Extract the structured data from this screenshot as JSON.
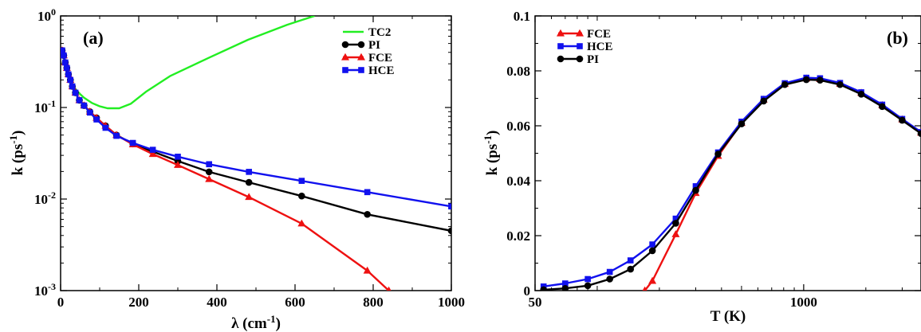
{
  "chart_data": [
    {
      "type": "line",
      "panel_label": "(a)",
      "xlabel": "λ (cm",
      "xlabel_sup": "-1",
      "xlabel_close": ")",
      "ylabel": "k (ps",
      "ylabel_sup": "-1",
      "ylabel_close": ")",
      "xscale": "linear",
      "yscale": "log",
      "xlim": [
        0,
        1000
      ],
      "ylim": [
        0.001,
        1
      ],
      "xticks": [
        {
          "value": 0,
          "label": "0"
        },
        {
          "value": 200,
          "label": "200"
        },
        {
          "value": 400,
          "label": "400"
        },
        {
          "value": 600,
          "label": "600"
        },
        {
          "value": 800,
          "label": "800"
        },
        {
          "value": 1000,
          "label": "1000"
        }
      ],
      "yticks": [
        {
          "value": 1,
          "base": "10",
          "exp": "0"
        },
        {
          "value": 0.1,
          "base": "10",
          "exp": "-1"
        },
        {
          "value": 0.01,
          "base": "10",
          "exp": "-2"
        },
        {
          "value": 0.001,
          "base": "10",
          "exp": "-3"
        }
      ],
      "legend_position": "top-right",
      "series": [
        {
          "name": "TC2",
          "color": "#22ee22",
          "marker": "none",
          "x": [
            4,
            10,
            20,
            30,
            40,
            50,
            60,
            80,
            100,
            120,
            150,
            180,
            220,
            280,
            380,
            480,
            580,
            650
          ],
          "y": [
            0.42,
            0.32,
            0.23,
            0.18,
            0.155,
            0.14,
            0.128,
            0.112,
            0.103,
            0.098,
            0.098,
            0.11,
            0.15,
            0.22,
            0.35,
            0.55,
            0.8,
            1.0
          ]
        },
        {
          "name": "PI",
          "color": "#000000",
          "marker": "circle",
          "x": [
            4,
            8,
            12,
            16,
            20,
            25,
            30,
            38,
            48,
            60,
            75,
            92,
            115,
            143,
            185,
            236,
            300,
            380,
            482,
            617,
            785,
            1000
          ],
          "y": [
            0.42,
            0.37,
            0.31,
            0.27,
            0.23,
            0.2,
            0.17,
            0.145,
            0.12,
            0.105,
            0.09,
            0.077,
            0.063,
            0.05,
            0.04,
            0.033,
            0.026,
            0.0198,
            0.0152,
            0.0108,
            0.0068,
            0.0045
          ]
        },
        {
          "name": "FCE",
          "color": "#ee1111",
          "marker": "triangle",
          "x": [
            4,
            8,
            12,
            16,
            20,
            25,
            30,
            38,
            48,
            60,
            75,
            92,
            115,
            143,
            185,
            236,
            300,
            380,
            482,
            617,
            785,
            840
          ],
          "y": [
            0.42,
            0.37,
            0.31,
            0.27,
            0.23,
            0.2,
            0.17,
            0.145,
            0.12,
            0.105,
            0.09,
            0.077,
            0.063,
            0.05,
            0.0395,
            0.031,
            0.0235,
            0.0165,
            0.0105,
            0.0054,
            0.00165,
            0.001
          ]
        },
        {
          "name": "HCE",
          "color": "#1111ee",
          "marker": "square",
          "x": [
            4,
            8,
            12,
            16,
            20,
            25,
            30,
            38,
            48,
            60,
            75,
            92,
            115,
            143,
            185,
            236,
            300,
            380,
            482,
            617,
            785,
            1000
          ],
          "y": [
            0.42,
            0.37,
            0.31,
            0.27,
            0.23,
            0.2,
            0.17,
            0.145,
            0.12,
            0.105,
            0.088,
            0.074,
            0.06,
            0.049,
            0.041,
            0.0345,
            0.029,
            0.024,
            0.0198,
            0.0158,
            0.0119,
            0.0083
          ]
        }
      ]
    },
    {
      "type": "line",
      "panel_label": "(b)",
      "xlabel": "T (K)",
      "ylabel": "k (ps",
      "ylabel_sup": "-1",
      "ylabel_close": ")",
      "xscale": "log",
      "yscale": "linear",
      "xlim": [
        50,
        3700
      ],
      "ylim": [
        0,
        0.1
      ],
      "xticks": [
        {
          "value": 50,
          "label": "50"
        },
        {
          "value": 1000,
          "label": "1000"
        }
      ],
      "yticks": [
        {
          "value": 0,
          "label": "0"
        },
        {
          "value": 0.02,
          "label": "0.02"
        },
        {
          "value": 0.04,
          "label": "0.04"
        },
        {
          "value": 0.06,
          "label": "0.06"
        },
        {
          "value": 0.08,
          "label": "0.08"
        },
        {
          "value": 0.1,
          "label": "0.1"
        }
      ],
      "legend_position": "top-left",
      "series": [
        {
          "name": "FCE",
          "color": "#ee1111",
          "marker": "triangle",
          "x": [
            170,
            185,
            240,
            300,
            385,
            500,
            640,
            810,
            1030,
            1200,
            1500,
            1900,
            2400,
            3000,
            3700
          ],
          "y": [
            0.0,
            0.0035,
            0.0205,
            0.0355,
            0.049,
            0.061,
            0.0695,
            0.0752,
            0.0772,
            0.077,
            0.0753,
            0.072,
            0.0675,
            0.0623,
            0.0575
          ]
        },
        {
          "name": "HCE",
          "color": "#1111ee",
          "marker": "square",
          "x": [
            55,
            70,
            90,
            115,
            145,
            185,
            240,
            300,
            385,
            500,
            640,
            810,
            1030,
            1200,
            1500,
            1900,
            2400,
            3000,
            3700
          ],
          "y": [
            0.0015,
            0.0026,
            0.0042,
            0.0068,
            0.011,
            0.0168,
            0.0262,
            0.038,
            0.0503,
            0.0615,
            0.0698,
            0.0755,
            0.0775,
            0.0773,
            0.0756,
            0.0722,
            0.0677,
            0.0625,
            0.0577
          ]
        },
        {
          "name": "PI",
          "color": "#000000",
          "marker": "circle",
          "x": [
            55,
            70,
            90,
            115,
            145,
            185,
            240,
            300,
            385,
            500,
            640,
            810,
            1030,
            1200,
            1500,
            1900,
            2400,
            3000,
            3700
          ],
          "y": [
            0.0003,
            0.0008,
            0.0018,
            0.0042,
            0.0078,
            0.0145,
            0.0245,
            0.0365,
            0.0497,
            0.0607,
            0.069,
            0.075,
            0.0768,
            0.0766,
            0.075,
            0.0715,
            0.067,
            0.062,
            0.0572
          ]
        }
      ]
    }
  ]
}
